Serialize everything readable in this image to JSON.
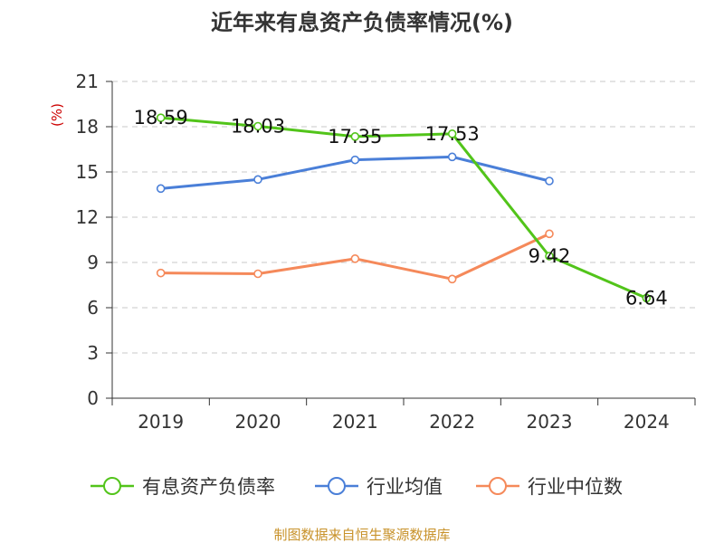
{
  "chart_data": {
    "type": "line",
    "title": "近年来有息资产负债率情况(%)",
    "ylabel": "(%)",
    "xlabel": "",
    "categories": [
      "2019",
      "2020",
      "2021",
      "2022",
      "2023",
      "2024"
    ],
    "ylim": [
      0,
      21
    ],
    "yticks": [
      0,
      3,
      6,
      9,
      12,
      15,
      18,
      21
    ],
    "grid": true,
    "legend_position": "bottom",
    "series": [
      {
        "name": "有息资产负债率",
        "color": "#52c41a",
        "values": [
          18.59,
          18.03,
          17.35,
          17.53,
          9.42,
          6.64
        ],
        "labels": [
          "18.59",
          "18.03",
          "17.35",
          "17.53",
          "9.42",
          "6.64"
        ]
      },
      {
        "name": "行业均值",
        "color": "#4a7fd8",
        "values": [
          13.9,
          14.5,
          15.8,
          16.0,
          14.4,
          null
        ]
      },
      {
        "name": "行业中位数",
        "color": "#f5895a",
        "values": [
          8.3,
          8.25,
          9.25,
          7.9,
          10.9,
          null
        ]
      }
    ]
  },
  "source": "制图数据来自恒生聚源数据库"
}
